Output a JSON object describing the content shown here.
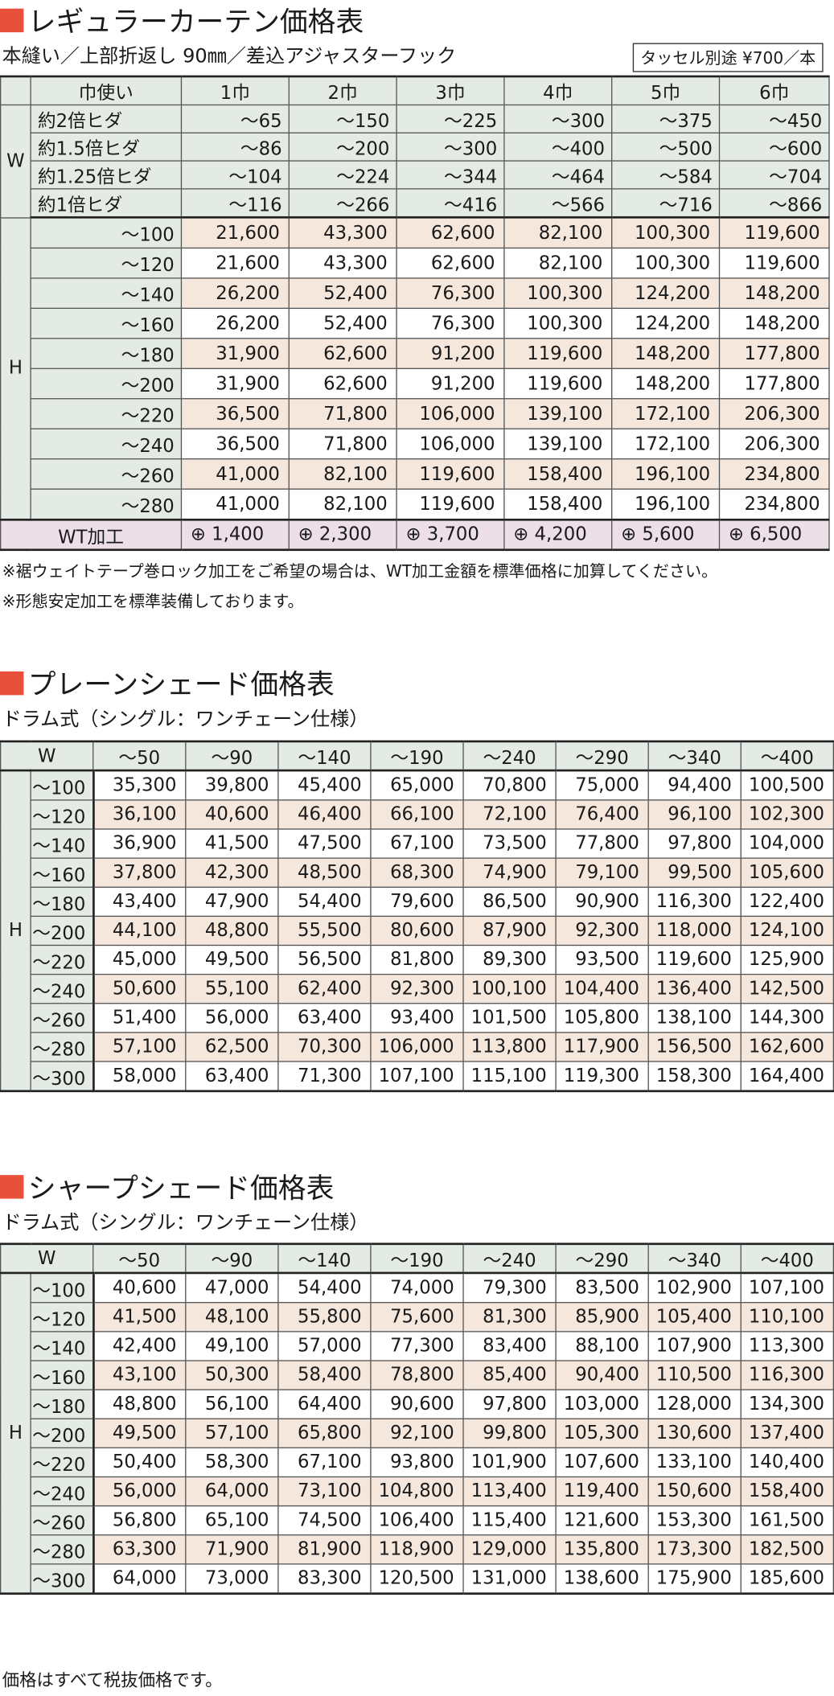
{
  "curtain": {
    "title": "レギュラーカーテン価格表",
    "subtitle": "本縫い／上部折返し 90㎜／差込アジャスターフック",
    "tassel_note": "タッセル別途 ¥700／本",
    "header_label": "巾使い",
    "columns": [
      "1巾",
      "2巾",
      "3巾",
      "4巾",
      "5巾",
      "6巾"
    ],
    "w_label": "W",
    "w_rows": [
      {
        "label": "約2倍ヒダ",
        "values": [
          "～65",
          "～150",
          "～225",
          "～300",
          "～375",
          "～450"
        ]
      },
      {
        "label": "約1.5倍ヒダ",
        "values": [
          "～86",
          "～200",
          "～300",
          "～400",
          "～500",
          "～600"
        ]
      },
      {
        "label": "約1.25倍ヒダ",
        "values": [
          "～104",
          "～224",
          "～344",
          "～464",
          "～584",
          "～704"
        ]
      },
      {
        "label": "約1倍ヒダ",
        "values": [
          "～116",
          "～266",
          "～416",
          "～566",
          "～716",
          "～866"
        ]
      }
    ],
    "h_label": "H",
    "h_rows": [
      {
        "label": "～100",
        "values": [
          "21,600",
          "43,300",
          "62,600",
          "82,100",
          "100,300",
          "119,600"
        ]
      },
      {
        "label": "～120",
        "values": [
          "21,600",
          "43,300",
          "62,600",
          "82,100",
          "100,300",
          "119,600"
        ]
      },
      {
        "label": "～140",
        "values": [
          "26,200",
          "52,400",
          "76,300",
          "100,300",
          "124,200",
          "148,200"
        ]
      },
      {
        "label": "～160",
        "values": [
          "26,200",
          "52,400",
          "76,300",
          "100,300",
          "124,200",
          "148,200"
        ]
      },
      {
        "label": "～180",
        "values": [
          "31,900",
          "62,600",
          "91,200",
          "119,600",
          "148,200",
          "177,800"
        ]
      },
      {
        "label": "～200",
        "values": [
          "31,900",
          "62,600",
          "91,200",
          "119,600",
          "148,200",
          "177,800"
        ]
      },
      {
        "label": "～220",
        "values": [
          "36,500",
          "71,800",
          "106,000",
          "139,100",
          "172,100",
          "206,300"
        ]
      },
      {
        "label": "～240",
        "values": [
          "36,500",
          "71,800",
          "106,000",
          "139,100",
          "172,100",
          "206,300"
        ]
      },
      {
        "label": "～260",
        "values": [
          "41,000",
          "82,100",
          "119,600",
          "158,400",
          "196,100",
          "234,800"
        ]
      },
      {
        "label": "～280",
        "values": [
          "41,000",
          "82,100",
          "119,600",
          "158,400",
          "196,100",
          "234,800"
        ]
      }
    ],
    "wt": {
      "label": "WT加工",
      "values": [
        "⊕ 1,400",
        "⊕ 2,300",
        "⊕ 3,700",
        "⊕ 4,200",
        "⊕ 5,600",
        "⊕ 6,500"
      ]
    },
    "notes": [
      "※裾ウェイトテープ巻ロック加工をご希望の場合は、WT加工金額を標準価格に加算してください。",
      "※形態安定加工を標準装備しております。"
    ]
  },
  "plain": {
    "title": "プレーンシェード価格表",
    "subtitle": "ドラム式（シングル：ワンチェーン仕様）",
    "w_label": "W",
    "h_label": "H",
    "columns": [
      "～50",
      "～90",
      "～140",
      "～190",
      "～240",
      "～290",
      "～340",
      "～400"
    ],
    "rows": [
      {
        "label": "～100",
        "values": [
          "35,300",
          "39,800",
          "45,400",
          "65,000",
          "70,800",
          "75,000",
          "94,400",
          "100,500"
        ]
      },
      {
        "label": "～120",
        "values": [
          "36,100",
          "40,600",
          "46,400",
          "66,100",
          "72,100",
          "76,400",
          "96,100",
          "102,300"
        ]
      },
      {
        "label": "～140",
        "values": [
          "36,900",
          "41,500",
          "47,500",
          "67,100",
          "73,500",
          "77,800",
          "97,800",
          "104,000"
        ]
      },
      {
        "label": "～160",
        "values": [
          "37,800",
          "42,300",
          "48,500",
          "68,300",
          "74,900",
          "79,100",
          "99,500",
          "105,600"
        ]
      },
      {
        "label": "～180",
        "values": [
          "43,400",
          "47,900",
          "54,400",
          "79,600",
          "86,500",
          "90,900",
          "116,300",
          "122,400"
        ]
      },
      {
        "label": "～200",
        "values": [
          "44,100",
          "48,800",
          "55,500",
          "80,600",
          "87,900",
          "92,300",
          "118,000",
          "124,100"
        ]
      },
      {
        "label": "～220",
        "values": [
          "45,000",
          "49,500",
          "56,500",
          "81,800",
          "89,300",
          "93,500",
          "119,600",
          "125,900"
        ]
      },
      {
        "label": "～240",
        "values": [
          "50,600",
          "55,100",
          "62,400",
          "92,300",
          "100,100",
          "104,400",
          "136,400",
          "142,500"
        ]
      },
      {
        "label": "～260",
        "values": [
          "51,400",
          "56,000",
          "63,400",
          "93,400",
          "101,500",
          "105,800",
          "138,100",
          "144,300"
        ]
      },
      {
        "label": "～280",
        "values": [
          "57,100",
          "62,500",
          "70,300",
          "106,000",
          "113,800",
          "117,900",
          "156,500",
          "162,600"
        ]
      },
      {
        "label": "～300",
        "values": [
          "58,000",
          "63,400",
          "71,300",
          "107,100",
          "115,100",
          "119,300",
          "158,300",
          "164,400"
        ]
      }
    ]
  },
  "sharp": {
    "title": "シャープシェード価格表",
    "subtitle": "ドラム式（シングル：ワンチェーン仕様）",
    "w_label": "W",
    "h_label": "H",
    "columns": [
      "～50",
      "～90",
      "～140",
      "～190",
      "～240",
      "～290",
      "～340",
      "～400"
    ],
    "rows": [
      {
        "label": "～100",
        "values": [
          "40,600",
          "47,000",
          "54,400",
          "74,000",
          "79,300",
          "83,500",
          "102,900",
          "107,100"
        ]
      },
      {
        "label": "～120",
        "values": [
          "41,500",
          "48,100",
          "55,800",
          "75,600",
          "81,300",
          "85,900",
          "105,400",
          "110,100"
        ]
      },
      {
        "label": "～140",
        "values": [
          "42,400",
          "49,100",
          "57,000",
          "77,300",
          "83,400",
          "88,100",
          "107,900",
          "113,300"
        ]
      },
      {
        "label": "～160",
        "values": [
          "43,100",
          "50,300",
          "58,400",
          "78,800",
          "85,400",
          "90,400",
          "110,500",
          "116,300"
        ]
      },
      {
        "label": "～180",
        "values": [
          "48,800",
          "56,100",
          "64,400",
          "90,600",
          "97,800",
          "103,000",
          "128,000",
          "134,300"
        ]
      },
      {
        "label": "～200",
        "values": [
          "49,500",
          "57,100",
          "65,800",
          "92,100",
          "99,800",
          "105,300",
          "130,600",
          "137,400"
        ]
      },
      {
        "label": "～220",
        "values": [
          "50,400",
          "58,300",
          "67,100",
          "93,800",
          "101,900",
          "107,600",
          "133,100",
          "140,400"
        ]
      },
      {
        "label": "～240",
        "values": [
          "56,000",
          "64,000",
          "73,100",
          "104,800",
          "113,400",
          "119,400",
          "150,600",
          "158,400"
        ]
      },
      {
        "label": "～260",
        "values": [
          "56,800",
          "65,100",
          "74,500",
          "106,400",
          "115,400",
          "121,600",
          "153,300",
          "161,500"
        ]
      },
      {
        "label": "～280",
        "values": [
          "63,300",
          "71,900",
          "81,900",
          "118,900",
          "129,000",
          "135,800",
          "173,300",
          "182,500"
        ]
      },
      {
        "label": "～300",
        "values": [
          "64,000",
          "73,000",
          "83,300",
          "120,500",
          "131,000",
          "138,600",
          "175,900",
          "185,600"
        ]
      }
    ]
  },
  "footer": "価格はすべて税抜価格です。"
}
